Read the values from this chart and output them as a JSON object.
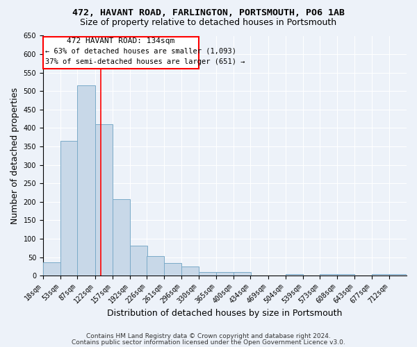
{
  "title1": "472, HAVANT ROAD, FARLINGTON, PORTSMOUTH, PO6 1AB",
  "title2": "Size of property relative to detached houses in Portsmouth",
  "xlabel": "Distribution of detached houses by size in Portsmouth",
  "ylabel": "Number of detached properties",
  "bar_color": "#c8d8e8",
  "bar_edge_color": "#7aaac8",
  "bg_color": "#edf2f9",
  "grid_color": "#ffffff",
  "fig_bg_color": "#edf2f9",
  "bin_labels": [
    "18sqm",
    "53sqm",
    "87sqm",
    "122sqm",
    "157sqm",
    "192sqm",
    "226sqm",
    "261sqm",
    "296sqm",
    "330sqm",
    "365sqm",
    "400sqm",
    "434sqm",
    "469sqm",
    "504sqm",
    "539sqm",
    "573sqm",
    "608sqm",
    "643sqm",
    "677sqm",
    "712sqm"
  ],
  "bar_heights": [
    37,
    365,
    515,
    410,
    207,
    82,
    53,
    35,
    24,
    10,
    10,
    10,
    0,
    0,
    5,
    0,
    5,
    5,
    0,
    5,
    5
  ],
  "bin_edges": [
    18,
    53,
    87,
    122,
    157,
    192,
    226,
    261,
    296,
    330,
    365,
    400,
    434,
    469,
    504,
    539,
    573,
    608,
    643,
    677,
    712
  ],
  "bin_width": 35,
  "red_line_x": 134,
  "ylim": [
    0,
    650
  ],
  "yticks": [
    0,
    50,
    100,
    150,
    200,
    250,
    300,
    350,
    400,
    450,
    500,
    550,
    600,
    650
  ],
  "annotation_line1": "472 HAVANT ROAD: 134sqm",
  "annotation_line2": "← 63% of detached houses are smaller (1,093)",
  "annotation_line3": "37% of semi-detached houses are larger (651) →",
  "footnote1": "Contains HM Land Registry data © Crown copyright and database right 2024.",
  "footnote2": "Contains public sector information licensed under the Open Government Licence v3.0.",
  "title1_fontsize": 9.5,
  "title2_fontsize": 9,
  "axis_label_fontsize": 9,
  "tick_fontsize": 7,
  "annotation_fontsize": 8,
  "footnote_fontsize": 6.5
}
